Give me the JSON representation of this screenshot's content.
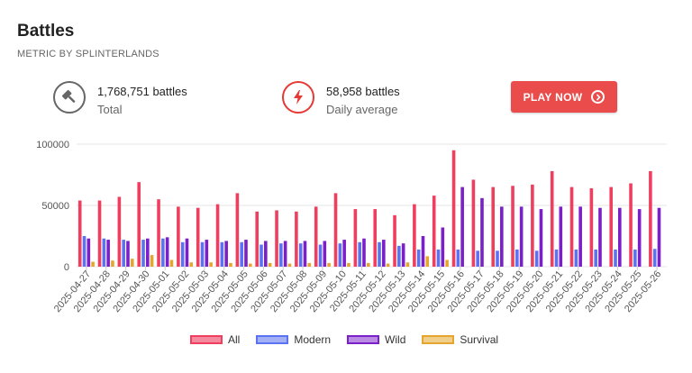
{
  "header": {
    "title": "Battles",
    "subtitle": "METRIC BY SPLINTERLANDS"
  },
  "stats": {
    "total": {
      "value": "1,768,751 battles",
      "label": "Total",
      "icon": "gavel-icon"
    },
    "daily": {
      "value": "58,958 battles",
      "label": "Daily average",
      "icon": "lightning-icon"
    }
  },
  "play_button": {
    "label": "PLAY NOW",
    "icon": "arrow-right-circle-icon"
  },
  "colors": {
    "all": "#f03e5f",
    "modern": "#5b73f0",
    "wild": "#7b1fc9",
    "survival": "#e6a52e",
    "accent": "#ea4c4c"
  },
  "chart_data": {
    "type": "bar",
    "categories": [
      "2025-04-27",
      "2025-04-28",
      "2025-04-29",
      "2025-04-30",
      "2025-05-01",
      "2025-05-02",
      "2025-05-03",
      "2025-05-04",
      "2025-05-05",
      "2025-05-06",
      "2025-05-07",
      "2025-05-08",
      "2025-05-09",
      "2025-05-10",
      "2025-05-11",
      "2025-05-12",
      "2025-05-13",
      "2025-05-14",
      "2025-05-15",
      "2025-05-16",
      "2025-05-17",
      "2025-05-18",
      "2025-05-19",
      "2025-05-20",
      "2025-05-21",
      "2025-05-22",
      "2025-05-23",
      "2025-05-24",
      "2025-05-25",
      "2025-05-26"
    ],
    "series": [
      {
        "name": "All",
        "values": [
          54000,
          54000,
          57000,
          69000,
          55000,
          49000,
          48000,
          51000,
          60000,
          45000,
          46000,
          45000,
          49000,
          60000,
          47000,
          47000,
          42000,
          51000,
          58000,
          95000,
          71000,
          65000,
          66000,
          67000,
          78000,
          65000,
          64000,
          65000,
          68000,
          78000
        ]
      },
      {
        "name": "Modern",
        "values": [
          25000,
          23000,
          22000,
          22000,
          23000,
          20000,
          20000,
          20000,
          20000,
          18000,
          19000,
          19000,
          18000,
          19000,
          20000,
          20000,
          17000,
          14000,
          14000,
          14000,
          13000,
          13000,
          14000,
          13000,
          14000,
          14000,
          14000,
          14000,
          14000,
          14500
        ]
      },
      {
        "name": "Wild",
        "values": [
          23000,
          22000,
          21000,
          23000,
          24000,
          23000,
          22000,
          21000,
          22000,
          21000,
          21000,
          21000,
          21000,
          22000,
          23000,
          22000,
          19000,
          25000,
          32000,
          65000,
          56000,
          49000,
          49000,
          47000,
          49000,
          49000,
          48000,
          48000,
          47000,
          48000
        ]
      },
      {
        "name": "Survival",
        "values": [
          4000,
          5000,
          6500,
          9500,
          5500,
          3500,
          3500,
          3000,
          2500,
          3000,
          2500,
          3000,
          3000,
          3000,
          3000,
          2500,
          3500,
          8500,
          5500,
          0,
          0,
          0,
          0,
          0,
          0,
          0,
          0,
          0,
          0,
          0
        ]
      }
    ],
    "yticks": [
      "100000",
      "50000",
      "0"
    ],
    "ylim": [
      0,
      100000
    ],
    "grid": true,
    "legend_position": "bottom"
  }
}
